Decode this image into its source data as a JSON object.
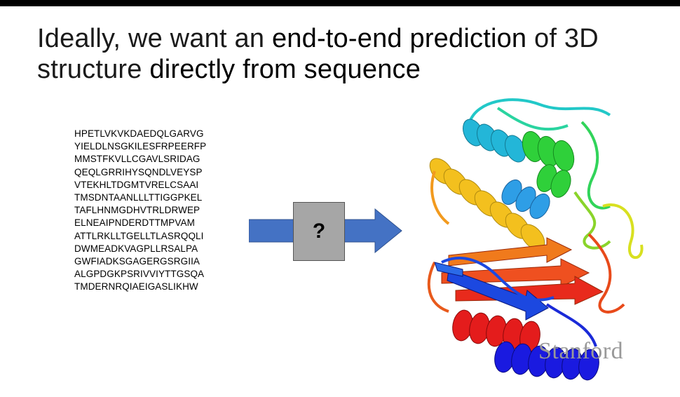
{
  "slide": {
    "title_parts": [
      {
        "text": "Ideally, we want an ",
        "emphasis": false
      },
      {
        "text": "end-to-end prediction",
        "emphasis": true
      },
      {
        "text": " of 3D structure ",
        "emphasis": false
      },
      {
        "text": "directly from sequence",
        "emphasis": true
      }
    ],
    "sequence_lines": [
      "HPETLVKVKDAEDQLGARVG",
      "YIELDLNSGKILESFRPEERFP",
      "MMSTFKVLLCGAVLSRIDAG",
      "QEQLGRRIHYSQNDLVEYSP",
      "VTEKHLTDGMTVRELCSAAI",
      "TMSDNTAANLLLTTIGGPKEL",
      "TAFLHNMGDHVTRLDRWEP",
      "ELNEAIPNDERDTTMPVAM",
      "ATTLRKLLTGELLTLASRQQLI",
      "DWMEADKVAGPLLRSALPA",
      "GWFIADKSGAGERGSRGIIA",
      "ALGPDGKPSRIVVIYTTGSQA",
      "TMDERNRQIAEIGASLIKHW"
    ],
    "question_mark": "?",
    "watermark": "Stanford",
    "colors": {
      "arrow": "#4472c4",
      "box": "#a6a6a6"
    },
    "icons": {
      "arrow": "right-arrow-icon",
      "protein": "protein-structure-image"
    }
  }
}
